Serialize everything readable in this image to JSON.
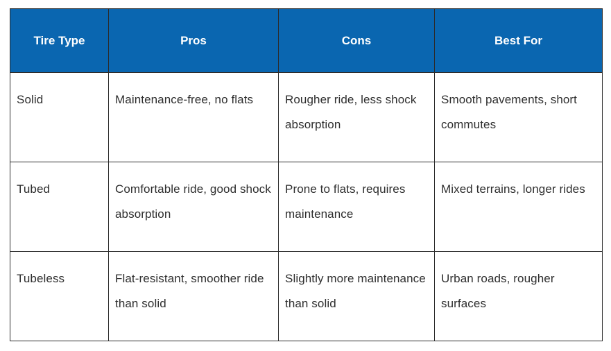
{
  "table": {
    "headers": [
      "Tire Type",
      "Pros",
      "Cons",
      "Best For"
    ],
    "rows": [
      [
        "Solid",
        "Maintenance-free, no flats",
        "Rougher ride, less shock absorption",
        "Smooth pavements, short commutes"
      ],
      [
        "Tubed",
        "Comfortable ride, good shock absorption",
        "Prone to flats, requires maintenance",
        "Mixed terrains, longer rides"
      ],
      [
        "Tubeless",
        "Flat-resistant, smoother ride than solid",
        "Slightly more maintenance than solid",
        "Urban roads, rougher surfaces"
      ]
    ]
  },
  "colors": {
    "header_background": "#0a66b0",
    "header_text": "#ffffff",
    "body_text": "#2e2e2e",
    "border": "#2b2b2b"
  }
}
